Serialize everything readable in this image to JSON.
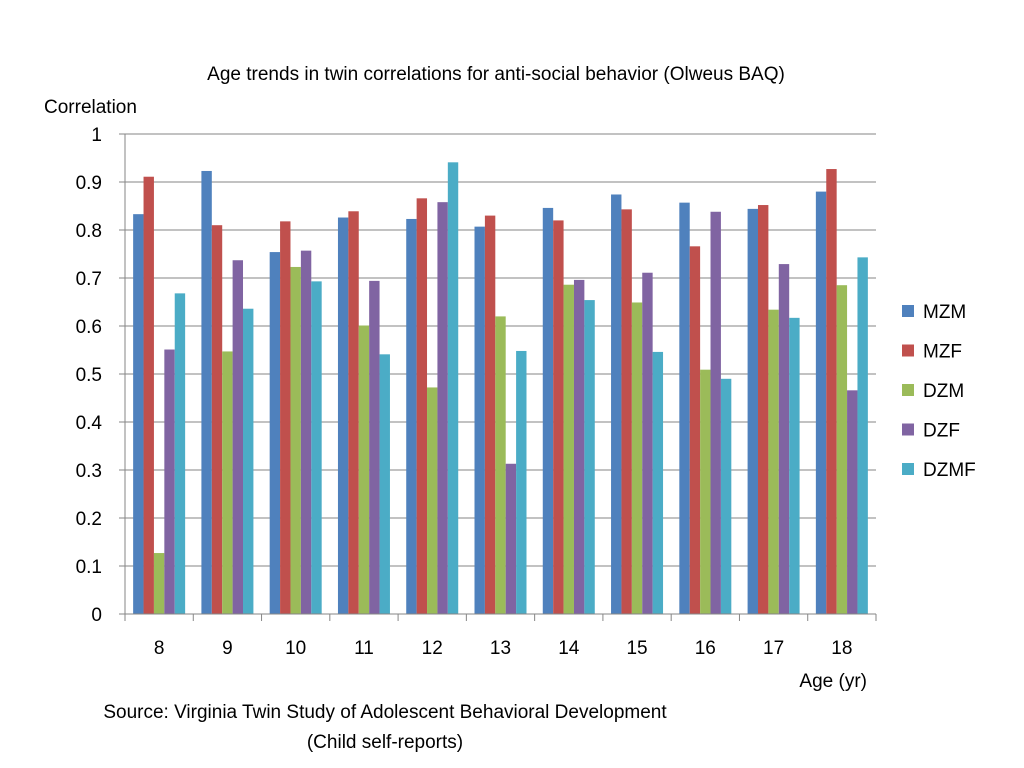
{
  "chart_data": {
    "type": "bar",
    "title": "Age trends in twin correlations for anti-social behavior (Olweus BAQ)",
    "ylabel": "Correlation",
    "xlabel": "Age (yr)",
    "ylim": [
      0,
      1
    ],
    "yticks": [
      "0",
      "0.1",
      "0.2",
      "0.3",
      "0.4",
      "0.5",
      "0.6",
      "0.7",
      "0.8",
      "0.9",
      "1"
    ],
    "categories": [
      "8",
      "9",
      "10",
      "11",
      "12",
      "13",
      "14",
      "15",
      "16",
      "17",
      "18"
    ],
    "grid": true,
    "legend_position": "right",
    "series": [
      {
        "name": "MZM",
        "color": "#4F81BD",
        "values": [
          0.833,
          0.923,
          0.754,
          0.826,
          0.823,
          0.807,
          0.846,
          0.874,
          0.857,
          0.844,
          0.88
        ]
      },
      {
        "name": "MZF",
        "color": "#C0504D",
        "values": [
          0.911,
          0.81,
          0.818,
          0.839,
          0.866,
          0.83,
          0.82,
          0.843,
          0.766,
          0.852,
          0.927
        ]
      },
      {
        "name": "DZM",
        "color": "#9BBB59",
        "values": [
          0.127,
          0.547,
          0.723,
          0.601,
          0.472,
          0.62,
          0.686,
          0.649,
          0.509,
          0.634,
          0.685
        ]
      },
      {
        "name": "DZF",
        "color": "#8064A2",
        "values": [
          0.551,
          0.737,
          0.757,
          0.694,
          0.858,
          0.313,
          0.696,
          0.711,
          0.838,
          0.729,
          0.466
        ]
      },
      {
        "name": "DZMF",
        "color": "#4BACC6",
        "values": [
          0.668,
          0.636,
          0.693,
          0.541,
          0.941,
          0.548,
          0.654,
          0.546,
          0.49,
          0.617,
          0.743
        ]
      }
    ]
  },
  "source": {
    "line1": "Source: Virginia Twin Study of Adolescent Behavioral Development",
    "line2": "(Child self-reports)"
  }
}
